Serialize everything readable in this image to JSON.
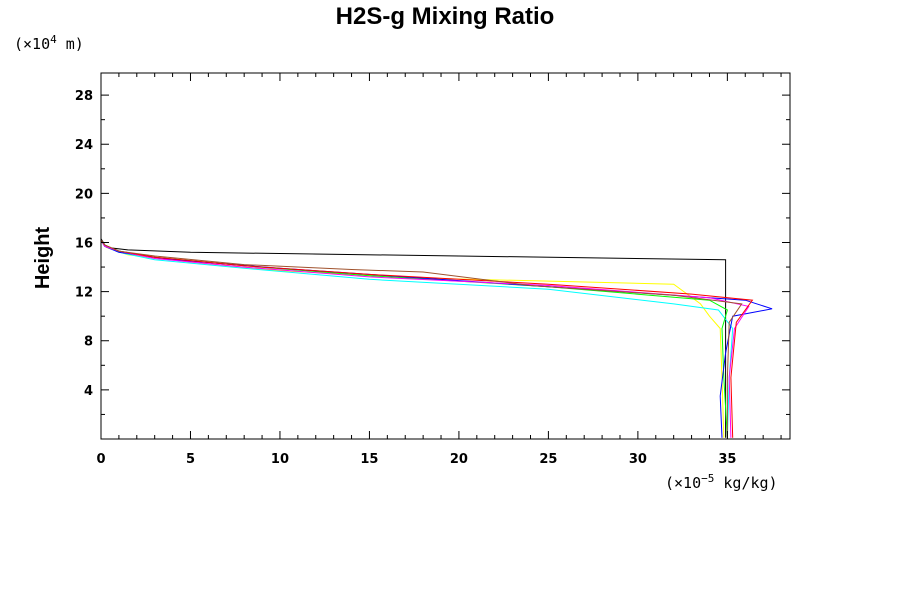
{
  "chart_data": {
    "type": "line",
    "title": "H2S-g Mixing Ratio",
    "ylabel": "Height",
    "xlabel": "",
    "y_unit": {
      "prefix": "(×10",
      "exp": "4",
      "suffix": " m)"
    },
    "x_unit": {
      "prefix": "(×10",
      "exp": "−5",
      "suffix": " kg/kg)"
    },
    "xlim": [
      0,
      38.5
    ],
    "ylim": [
      0,
      29.8
    ],
    "xticks": [
      0,
      5,
      10,
      15,
      20,
      25,
      30,
      35
    ],
    "yticks": [
      4,
      8,
      12,
      16,
      20,
      24,
      28
    ],
    "grid": false,
    "legend": "none",
    "series": [
      {
        "color": "#000000",
        "points": [
          [
            34.9,
            0.1
          ],
          [
            34.9,
            14.6
          ],
          [
            20,
            14.9
          ],
          [
            5,
            15.2
          ],
          [
            1.5,
            15.4
          ],
          [
            0.3,
            15.6
          ],
          [
            0,
            16.3
          ],
          [
            0,
            29.8
          ]
        ]
      },
      {
        "color": "#ffff00",
        "points": [
          [
            34.8,
            0.1
          ],
          [
            34.7,
            5
          ],
          [
            34.6,
            9
          ],
          [
            34,
            10
          ],
          [
            33.5,
            11
          ],
          [
            32,
            12.6
          ],
          [
            18,
            13.1
          ],
          [
            10,
            13.7
          ],
          [
            5,
            14.4
          ],
          [
            1.5,
            15.0
          ],
          [
            0.3,
            15.6
          ],
          [
            0,
            16.2
          ]
        ]
      },
      {
        "color": "#00ffff",
        "points": [
          [
            35,
            0.1
          ],
          [
            35.1,
            5
          ],
          [
            35.3,
            9
          ],
          [
            34.5,
            10.5
          ],
          [
            32,
            11.0
          ],
          [
            25,
            12.2
          ],
          [
            15,
            13.0
          ],
          [
            8,
            13.9
          ],
          [
            3,
            14.6
          ],
          [
            1,
            15.2
          ],
          [
            0.2,
            15.7
          ],
          [
            0,
            16.2
          ]
        ]
      },
      {
        "color": "#00ff00",
        "points": [
          [
            35,
            0.1
          ],
          [
            34.8,
            5
          ],
          [
            34.7,
            9
          ],
          [
            35,
            10.5
          ],
          [
            34,
            11.3
          ],
          [
            25,
            12.4
          ],
          [
            15,
            13.3
          ],
          [
            8,
            14.1
          ],
          [
            3,
            14.8
          ],
          [
            1,
            15.3
          ],
          [
            0.2,
            15.8
          ],
          [
            0,
            16.2
          ]
        ]
      },
      {
        "color": "#0000ff",
        "points": [
          [
            34.7,
            0.1
          ],
          [
            34.6,
            3.5
          ],
          [
            34.9,
            7
          ],
          [
            35.3,
            10
          ],
          [
            37.5,
            10.6
          ],
          [
            36,
            11.3
          ],
          [
            30,
            11.9
          ],
          [
            20,
            12.9
          ],
          [
            10,
            13.9
          ],
          [
            4,
            14.6
          ],
          [
            1,
            15.2
          ],
          [
            0.2,
            15.7
          ],
          [
            0,
            16.2
          ]
        ]
      },
      {
        "color": "#ff00ff",
        "points": [
          [
            35.2,
            0.1
          ],
          [
            35.1,
            5
          ],
          [
            35.4,
            9
          ],
          [
            36.2,
            10.8
          ],
          [
            34,
            11.5
          ],
          [
            25,
            12.5
          ],
          [
            15,
            13.2
          ],
          [
            8,
            14.0
          ],
          [
            3,
            14.7
          ],
          [
            1,
            15.3
          ],
          [
            0.2,
            15.7
          ],
          [
            0,
            16.2
          ]
        ]
      },
      {
        "color": "#ff0000",
        "points": [
          [
            35.3,
            0.1
          ],
          [
            35.2,
            5
          ],
          [
            35.5,
            9.5
          ],
          [
            36.4,
            11.3
          ],
          [
            33,
            11.8
          ],
          [
            25,
            12.6
          ],
          [
            15,
            13.4
          ],
          [
            8,
            14.1
          ],
          [
            3,
            14.8
          ],
          [
            1,
            15.3
          ],
          [
            0.2,
            15.8
          ],
          [
            0,
            16.2
          ]
        ]
      },
      {
        "color": "#a0522d",
        "points": [
          [
            35,
            0.1
          ],
          [
            35,
            5
          ],
          [
            35.1,
            9.5
          ],
          [
            35.8,
            11
          ],
          [
            32,
            11.7
          ],
          [
            24,
            12.5
          ],
          [
            18,
            13.6
          ],
          [
            14,
            13.8
          ],
          [
            8,
            14.2
          ],
          [
            3,
            14.9
          ],
          [
            1,
            15.3
          ],
          [
            0.2,
            15.8
          ],
          [
            0,
            16.2
          ]
        ]
      },
      {
        "color": "#ff00ff",
        "points": [
          [
            0,
            16.2
          ],
          [
            0,
            29.8
          ]
        ]
      }
    ]
  }
}
